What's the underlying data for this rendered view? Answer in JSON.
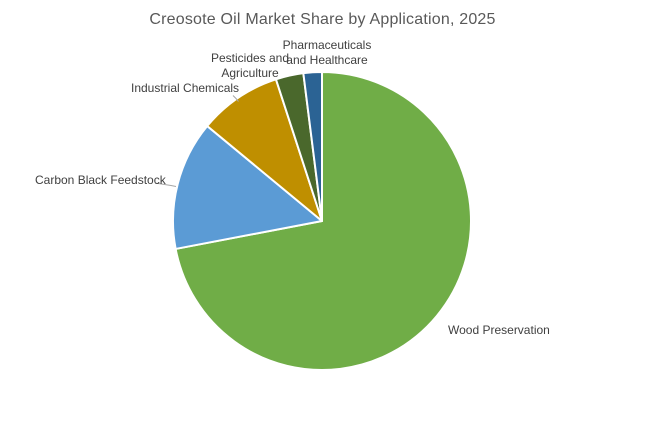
{
  "title": "Creosote Oil Market Share by Application, 2025",
  "chart_data": {
    "type": "pie",
    "title": "Creosote Oil Market Share by Application, 2025",
    "unit": "percent of market share",
    "start_angle_deg": 0,
    "direction": "clockwise",
    "legend": "none",
    "labels_position": "outside",
    "separator_color": "#FFFFFF",
    "title_color": "#595959",
    "label_color": "#404040",
    "slices": [
      {
        "label": "Wood Preservation",
        "value": 72,
        "color": "#70AD47"
      },
      {
        "label": "Carbon Black Feedstock",
        "value": 14,
        "color": "#5B9BD5"
      },
      {
        "label": "Industrial Chemicals",
        "value": 9,
        "color": "#BF8F00"
      },
      {
        "label": "Pesticides and Agriculture",
        "value": 3,
        "color": "#4A682C"
      },
      {
        "label": "Pharmaceuticals and Healthcare",
        "value": 2,
        "color": "#2B6394"
      }
    ]
  }
}
